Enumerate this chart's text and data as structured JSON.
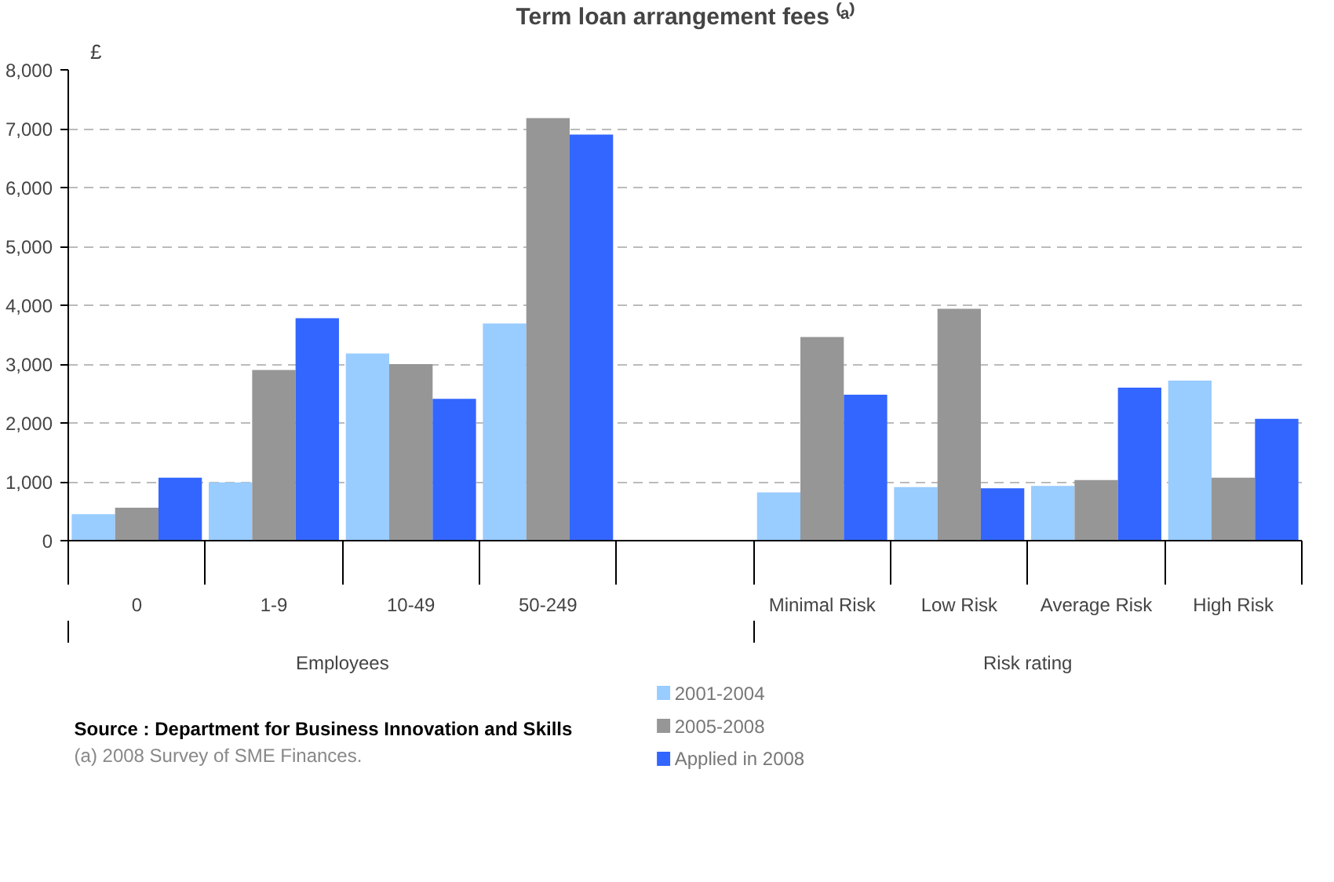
{
  "chart_data": {
    "type": "bar",
    "title": "Term loan arrangement fees ⁽ᵃ⁾",
    "ylabel": "£",
    "categories": [
      "0",
      "1-9",
      "10-49",
      "50-249",
      null,
      "Minimal Risk",
      "Low Risk",
      "Average Risk",
      "High Risk"
    ],
    "series": [
      {
        "name": "2001-2004",
        "color": "#99ccff",
        "values": [
          450,
          990,
          3180,
          3690,
          null,
          820,
          910,
          930,
          2720
        ]
      },
      {
        "name": "2005-2008",
        "color": "#969696",
        "values": [
          560,
          2900,
          3000,
          7180,
          null,
          3460,
          3940,
          1030,
          1070
        ]
      },
      {
        "name": "Applied in 2008",
        "color": "#3366ff",
        "values": [
          1070,
          3780,
          2410,
          6900,
          null,
          2480,
          890,
          2600,
          2070
        ]
      }
    ],
    "ylim": [
      0,
      8000
    ],
    "yticks": [
      {
        "value": 0,
        "label": "0"
      },
      {
        "value": 1000,
        "label": "1,000"
      },
      {
        "value": 2000,
        "label": "2,000"
      },
      {
        "value": 3000,
        "label": "3,000"
      },
      {
        "value": 4000,
        "label": "4,000"
      },
      {
        "value": 5000,
        "label": "5,000"
      },
      {
        "value": 6000,
        "label": "6,000"
      },
      {
        "value": 7000,
        "label": "7,000"
      },
      {
        "value": 8000,
        "label": "8,000"
      }
    ],
    "grid": "y",
    "legend": "bottom",
    "annotations": [
      "Employees",
      "Risk rating",
      "Source : Department for Business Innovation and Skills",
      "(a) 2008 Survey of SME Finances."
    ]
  }
}
